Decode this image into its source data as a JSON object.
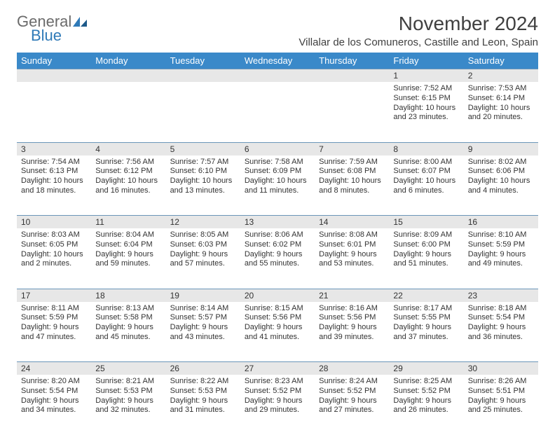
{
  "logo": {
    "general": "General",
    "blue": "Blue"
  },
  "title": "November 2024",
  "location": "Villalar de los Comuneros, Castille and Leon, Spain",
  "colors": {
    "header_bg": "#3a89c9",
    "header_text": "#ffffff",
    "daynum_bg": "#e7e7e7",
    "border_top": "#6a95b8",
    "logo_gray": "#6b6b6b",
    "logo_blue": "#2f7ab8"
  },
  "weekdays": [
    "Sunday",
    "Monday",
    "Tuesday",
    "Wednesday",
    "Thursday",
    "Friday",
    "Saturday"
  ],
  "weeks": [
    {
      "nums": [
        "",
        "",
        "",
        "",
        "",
        "1",
        "2"
      ],
      "cells": [
        null,
        null,
        null,
        null,
        null,
        {
          "sunrise": "Sunrise: 7:52 AM",
          "sunset": "Sunset: 6:15 PM",
          "daylight": "Daylight: 10 hours and 23 minutes."
        },
        {
          "sunrise": "Sunrise: 7:53 AM",
          "sunset": "Sunset: 6:14 PM",
          "daylight": "Daylight: 10 hours and 20 minutes."
        }
      ]
    },
    {
      "nums": [
        "3",
        "4",
        "5",
        "6",
        "7",
        "8",
        "9"
      ],
      "cells": [
        {
          "sunrise": "Sunrise: 7:54 AM",
          "sunset": "Sunset: 6:13 PM",
          "daylight": "Daylight: 10 hours and 18 minutes."
        },
        {
          "sunrise": "Sunrise: 7:56 AM",
          "sunset": "Sunset: 6:12 PM",
          "daylight": "Daylight: 10 hours and 16 minutes."
        },
        {
          "sunrise": "Sunrise: 7:57 AM",
          "sunset": "Sunset: 6:10 PM",
          "daylight": "Daylight: 10 hours and 13 minutes."
        },
        {
          "sunrise": "Sunrise: 7:58 AM",
          "sunset": "Sunset: 6:09 PM",
          "daylight": "Daylight: 10 hours and 11 minutes."
        },
        {
          "sunrise": "Sunrise: 7:59 AM",
          "sunset": "Sunset: 6:08 PM",
          "daylight": "Daylight: 10 hours and 8 minutes."
        },
        {
          "sunrise": "Sunrise: 8:00 AM",
          "sunset": "Sunset: 6:07 PM",
          "daylight": "Daylight: 10 hours and 6 minutes."
        },
        {
          "sunrise": "Sunrise: 8:02 AM",
          "sunset": "Sunset: 6:06 PM",
          "daylight": "Daylight: 10 hours and 4 minutes."
        }
      ]
    },
    {
      "nums": [
        "10",
        "11",
        "12",
        "13",
        "14",
        "15",
        "16"
      ],
      "cells": [
        {
          "sunrise": "Sunrise: 8:03 AM",
          "sunset": "Sunset: 6:05 PM",
          "daylight": "Daylight: 10 hours and 2 minutes."
        },
        {
          "sunrise": "Sunrise: 8:04 AM",
          "sunset": "Sunset: 6:04 PM",
          "daylight": "Daylight: 9 hours and 59 minutes."
        },
        {
          "sunrise": "Sunrise: 8:05 AM",
          "sunset": "Sunset: 6:03 PM",
          "daylight": "Daylight: 9 hours and 57 minutes."
        },
        {
          "sunrise": "Sunrise: 8:06 AM",
          "sunset": "Sunset: 6:02 PM",
          "daylight": "Daylight: 9 hours and 55 minutes."
        },
        {
          "sunrise": "Sunrise: 8:08 AM",
          "sunset": "Sunset: 6:01 PM",
          "daylight": "Daylight: 9 hours and 53 minutes."
        },
        {
          "sunrise": "Sunrise: 8:09 AM",
          "sunset": "Sunset: 6:00 PM",
          "daylight": "Daylight: 9 hours and 51 minutes."
        },
        {
          "sunrise": "Sunrise: 8:10 AM",
          "sunset": "Sunset: 5:59 PM",
          "daylight": "Daylight: 9 hours and 49 minutes."
        }
      ]
    },
    {
      "nums": [
        "17",
        "18",
        "19",
        "20",
        "21",
        "22",
        "23"
      ],
      "cells": [
        {
          "sunrise": "Sunrise: 8:11 AM",
          "sunset": "Sunset: 5:59 PM",
          "daylight": "Daylight: 9 hours and 47 minutes."
        },
        {
          "sunrise": "Sunrise: 8:13 AM",
          "sunset": "Sunset: 5:58 PM",
          "daylight": "Daylight: 9 hours and 45 minutes."
        },
        {
          "sunrise": "Sunrise: 8:14 AM",
          "sunset": "Sunset: 5:57 PM",
          "daylight": "Daylight: 9 hours and 43 minutes."
        },
        {
          "sunrise": "Sunrise: 8:15 AM",
          "sunset": "Sunset: 5:56 PM",
          "daylight": "Daylight: 9 hours and 41 minutes."
        },
        {
          "sunrise": "Sunrise: 8:16 AM",
          "sunset": "Sunset: 5:56 PM",
          "daylight": "Daylight: 9 hours and 39 minutes."
        },
        {
          "sunrise": "Sunrise: 8:17 AM",
          "sunset": "Sunset: 5:55 PM",
          "daylight": "Daylight: 9 hours and 37 minutes."
        },
        {
          "sunrise": "Sunrise: 8:18 AM",
          "sunset": "Sunset: 5:54 PM",
          "daylight": "Daylight: 9 hours and 36 minutes."
        }
      ]
    },
    {
      "nums": [
        "24",
        "25",
        "26",
        "27",
        "28",
        "29",
        "30"
      ],
      "cells": [
        {
          "sunrise": "Sunrise: 8:20 AM",
          "sunset": "Sunset: 5:54 PM",
          "daylight": "Daylight: 9 hours and 34 minutes."
        },
        {
          "sunrise": "Sunrise: 8:21 AM",
          "sunset": "Sunset: 5:53 PM",
          "daylight": "Daylight: 9 hours and 32 minutes."
        },
        {
          "sunrise": "Sunrise: 8:22 AM",
          "sunset": "Sunset: 5:53 PM",
          "daylight": "Daylight: 9 hours and 31 minutes."
        },
        {
          "sunrise": "Sunrise: 8:23 AM",
          "sunset": "Sunset: 5:52 PM",
          "daylight": "Daylight: 9 hours and 29 minutes."
        },
        {
          "sunrise": "Sunrise: 8:24 AM",
          "sunset": "Sunset: 5:52 PM",
          "daylight": "Daylight: 9 hours and 27 minutes."
        },
        {
          "sunrise": "Sunrise: 8:25 AM",
          "sunset": "Sunset: 5:52 PM",
          "daylight": "Daylight: 9 hours and 26 minutes."
        },
        {
          "sunrise": "Sunrise: 8:26 AM",
          "sunset": "Sunset: 5:51 PM",
          "daylight": "Daylight: 9 hours and 25 minutes."
        }
      ]
    }
  ]
}
